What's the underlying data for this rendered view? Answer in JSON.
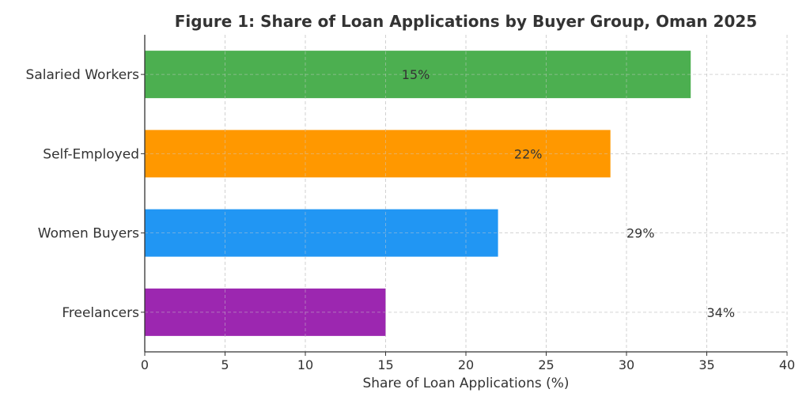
{
  "chart_data": {
    "type": "bar",
    "orientation": "horizontal",
    "title": "Figure 1: Share of Loan Applications by Buyer Group, Oman 2025",
    "xlabel": "Share of Loan Applications (%)",
    "ylabel": "",
    "xlim": [
      0,
      40
    ],
    "xticks": [
      "0",
      "5",
      "10",
      "15",
      "20",
      "25",
      "30",
      "35",
      "40"
    ],
    "xtick_values": [
      0,
      5,
      10,
      15,
      20,
      25,
      30,
      35,
      40
    ],
    "grid": true,
    "categories": [
      "Salaried Workers",
      "Self-Employed",
      "Women Buyers",
      "Freelancers"
    ],
    "values": [
      34,
      29,
      22,
      15
    ],
    "colors": [
      "#4caf50",
      "#ff9800",
      "#2196f3",
      "#9c27b0"
    ],
    "data_labels": [
      {
        "text": "15%",
        "x": 16
      },
      {
        "text": "22%",
        "x": 23
      },
      {
        "text": "29%",
        "x": 30
      },
      {
        "text": "34%",
        "x": 35
      }
    ]
  }
}
